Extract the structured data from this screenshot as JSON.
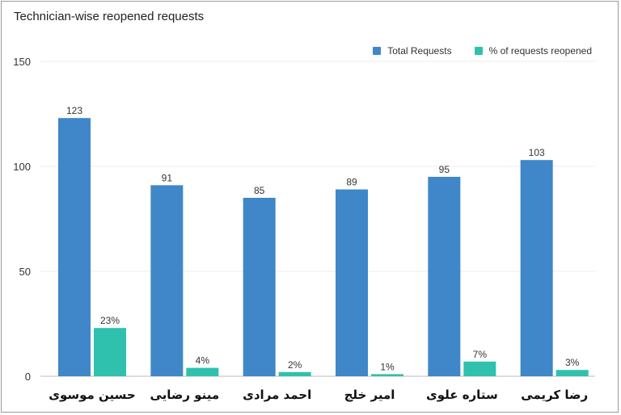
{
  "title": "Technician-wise reopened requests",
  "legend": {
    "total_label": "Total Requests",
    "percent_label": "% of requests reopened"
  },
  "colors": {
    "total": "#3f87c8",
    "percent": "#2fc1ad"
  },
  "chart_data": {
    "type": "bar",
    "title": "Technician-wise reopened requests",
    "categories": [
      "حسین موسوی",
      "مینو رضایی",
      "احمد مرادی",
      "امیر خلج",
      "ستاره علوی",
      "رضا کریمی"
    ],
    "series": [
      {
        "name": "Total Requests",
        "values": [
          123,
          91,
          85,
          89,
          95,
          103
        ],
        "labels": [
          "123",
          "91",
          "85",
          "89",
          "95",
          "103"
        ]
      },
      {
        "name": "% of requests reopened",
        "values": [
          23,
          4,
          2,
          1,
          7,
          3
        ],
        "labels": [
          "23%",
          "4%",
          "2%",
          "1%",
          "7%",
          "3%"
        ]
      }
    ],
    "y_ticks": [
      "0",
      "50",
      "100",
      "150"
    ],
    "ylim": [
      0,
      150
    ],
    "grid": true,
    "legend_position": "top-right",
    "xlabel": "",
    "ylabel": ""
  }
}
